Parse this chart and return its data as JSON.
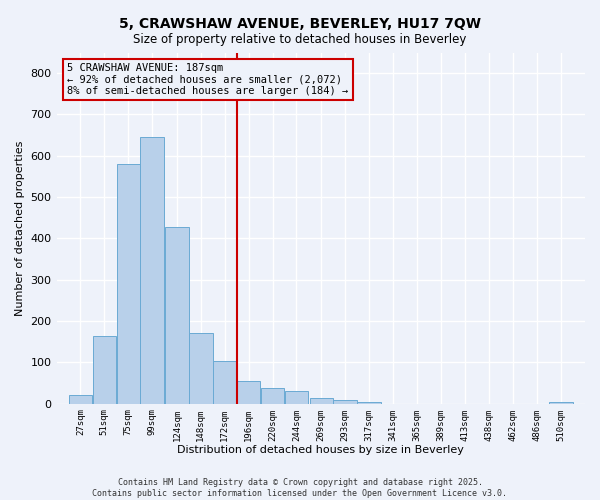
{
  "title": "5, CRAWSHAW AVENUE, BEVERLEY, HU17 7QW",
  "subtitle": "Size of property relative to detached houses in Beverley",
  "xlabel": "Distribution of detached houses by size in Beverley",
  "ylabel": "Number of detached properties",
  "bar_color": "#b8d0ea",
  "bar_edge_color": "#6aaad4",
  "background_color": "#eef2fa",
  "grid_color": "#ffffff",
  "vline_color": "#cc0000",
  "annotation_text_line1": "5 CRAWSHAW AVENUE: 187sqm",
  "annotation_text_line2": "← 92% of detached houses are smaller (2,072)",
  "annotation_text_line3": "8% of semi-detached houses are larger (184) →",
  "annotation_fontsize": 7.5,
  "categories": [
    "27sqm",
    "51sqm",
    "75sqm",
    "99sqm",
    "124sqm",
    "148sqm",
    "172sqm",
    "196sqm",
    "220sqm",
    "244sqm",
    "269sqm",
    "293sqm",
    "317sqm",
    "341sqm",
    "365sqm",
    "389sqm",
    "413sqm",
    "438sqm",
    "462sqm",
    "486sqm",
    "510sqm"
  ],
  "bin_left_edges": [
    27,
    51,
    75,
    99,
    124,
    148,
    172,
    196,
    220,
    244,
    269,
    293,
    317,
    341,
    365,
    389,
    413,
    438,
    462,
    486,
    510
  ],
  "bin_width": 24,
  "values": [
    20,
    165,
    580,
    645,
    428,
    170,
    103,
    55,
    38,
    30,
    14,
    9,
    5,
    0,
    0,
    0,
    0,
    0,
    0,
    0,
    5
  ],
  "ylim": [
    0,
    850
  ],
  "yticks": [
    0,
    100,
    200,
    300,
    400,
    500,
    600,
    700,
    800
  ],
  "vline_x_bin": 196,
  "footer_lines": [
    "Contains HM Land Registry data © Crown copyright and database right 2025.",
    "Contains public sector information licensed under the Open Government Licence v3.0."
  ],
  "footer_fontsize": 6.0
}
